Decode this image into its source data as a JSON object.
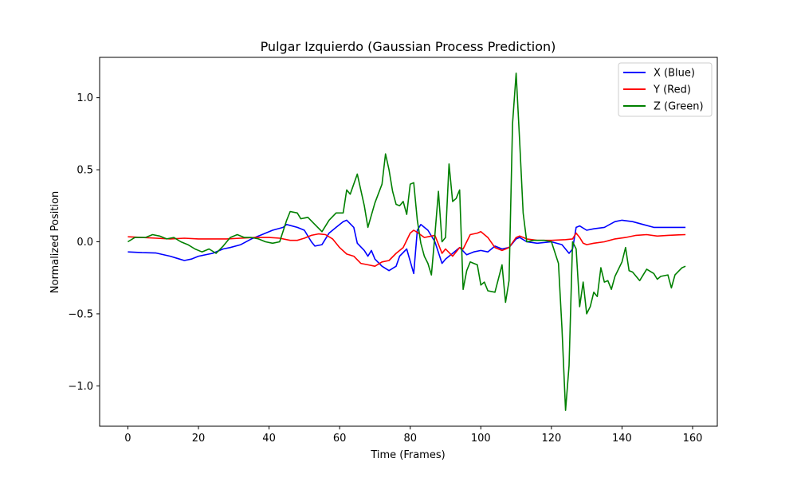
{
  "chart_data": {
    "type": "line",
    "title": "Pulgar Izquierdo (Gaussian Process Prediction)",
    "xlabel": "Time (Frames)",
    "ylabel": "Normalized Position",
    "xlim": [
      -8,
      167
    ],
    "ylim": [
      -1.28,
      1.28
    ],
    "x_ticks": [
      0,
      20,
      40,
      60,
      80,
      100,
      120,
      140,
      160
    ],
    "y_ticks": [
      -1.0,
      -0.5,
      0.0,
      0.5,
      1.0
    ],
    "y_tick_labels": [
      "−1.0",
      "−0.5",
      "0.0",
      "0.5",
      "1.0"
    ],
    "grid": false,
    "legend_position": "top-right",
    "series": [
      {
        "name": "X (Blue)",
        "color": "#0000ff",
        "points": [
          [
            0,
            -0.07
          ],
          [
            4,
            -0.075
          ],
          [
            8,
            -0.078
          ],
          [
            12,
            -0.1
          ],
          [
            14,
            -0.115
          ],
          [
            16,
            -0.13
          ],
          [
            18,
            -0.12
          ],
          [
            20,
            -0.1
          ],
          [
            24,
            -0.08
          ],
          [
            27,
            -0.05
          ],
          [
            29,
            -0.04
          ],
          [
            32,
            -0.02
          ],
          [
            35,
            0.02
          ],
          [
            38,
            0.05
          ],
          [
            41,
            0.08
          ],
          [
            44,
            0.1
          ],
          [
            45,
            0.12
          ],
          [
            48,
            0.1
          ],
          [
            50,
            0.08
          ],
          [
            52,
            0.0
          ],
          [
            53,
            -0.03
          ],
          [
            55,
            -0.02
          ],
          [
            57,
            0.06
          ],
          [
            59,
            0.1
          ],
          [
            61,
            0.14
          ],
          [
            62,
            0.15
          ],
          [
            64,
            0.1
          ],
          [
            65,
            -0.01
          ],
          [
            67,
            -0.06
          ],
          [
            68,
            -0.1
          ],
          [
            69,
            -0.06
          ],
          [
            70,
            -0.12
          ],
          [
            72,
            -0.17
          ],
          [
            74,
            -0.2
          ],
          [
            76,
            -0.17
          ],
          [
            77,
            -0.1
          ],
          [
            79,
            -0.05
          ],
          [
            81,
            -0.22
          ],
          [
            82,
            0.08
          ],
          [
            83,
            0.12
          ],
          [
            85,
            0.08
          ],
          [
            87,
            0.0
          ],
          [
            89,
            -0.15
          ],
          [
            90,
            -0.12
          ],
          [
            92,
            -0.08
          ],
          [
            94,
            -0.04
          ],
          [
            96,
            -0.09
          ],
          [
            98,
            -0.07
          ],
          [
            100,
            -0.06
          ],
          [
            102,
            -0.07
          ],
          [
            104,
            -0.03
          ],
          [
            106,
            -0.05
          ],
          [
            108,
            -0.04
          ],
          [
            110,
            0.02
          ],
          [
            111,
            0.03
          ],
          [
            113,
            0.0
          ],
          [
            116,
            -0.01
          ],
          [
            120,
            0.0
          ],
          [
            123,
            -0.02
          ],
          [
            125,
            -0.08
          ],
          [
            126,
            -0.05
          ],
          [
            127,
            0.1
          ],
          [
            128,
            0.11
          ],
          [
            130,
            0.08
          ],
          [
            132,
            0.09
          ],
          [
            135,
            0.1
          ],
          [
            138,
            0.14
          ],
          [
            140,
            0.15
          ],
          [
            143,
            0.14
          ],
          [
            146,
            0.12
          ],
          [
            149,
            0.1
          ],
          [
            152,
            0.1
          ],
          [
            155,
            0.1
          ],
          [
            158,
            0.1
          ]
        ]
      },
      {
        "name": "Y (Red)",
        "color": "#ff0000",
        "points": [
          [
            0,
            0.035
          ],
          [
            4,
            0.03
          ],
          [
            8,
            0.025
          ],
          [
            12,
            0.02
          ],
          [
            16,
            0.025
          ],
          [
            20,
            0.02
          ],
          [
            24,
            0.02
          ],
          [
            28,
            0.02
          ],
          [
            32,
            0.025
          ],
          [
            36,
            0.03
          ],
          [
            40,
            0.03
          ],
          [
            43,
            0.025
          ],
          [
            46,
            0.01
          ],
          [
            48,
            0.01
          ],
          [
            50,
            0.025
          ],
          [
            52,
            0.045
          ],
          [
            54,
            0.055
          ],
          [
            56,
            0.05
          ],
          [
            58,
            0.02
          ],
          [
            60,
            -0.04
          ],
          [
            62,
            -0.085
          ],
          [
            64,
            -0.1
          ],
          [
            66,
            -0.15
          ],
          [
            68,
            -0.16
          ],
          [
            70,
            -0.17
          ],
          [
            72,
            -0.14
          ],
          [
            74,
            -0.13
          ],
          [
            76,
            -0.08
          ],
          [
            78,
            -0.04
          ],
          [
            80,
            0.06
          ],
          [
            81,
            0.08
          ],
          [
            82,
            0.065
          ],
          [
            84,
            0.03
          ],
          [
            86,
            0.04
          ],
          [
            87,
            0.045
          ],
          [
            89,
            -0.08
          ],
          [
            90,
            -0.05
          ],
          [
            92,
            -0.1
          ],
          [
            94,
            -0.04
          ],
          [
            95,
            -0.05
          ],
          [
            97,
            0.05
          ],
          [
            99,
            0.06
          ],
          [
            100,
            0.07
          ],
          [
            102,
            0.03
          ],
          [
            104,
            -0.04
          ],
          [
            106,
            -0.06
          ],
          [
            108,
            -0.04
          ],
          [
            110,
            0.03
          ],
          [
            111,
            0.04
          ],
          [
            113,
            0.02
          ],
          [
            116,
            0.01
          ],
          [
            120,
            0.01
          ],
          [
            124,
            0.015
          ],
          [
            126,
            0.02
          ],
          [
            127,
            0.06
          ],
          [
            128,
            0.03
          ],
          [
            129,
            -0.01
          ],
          [
            130,
            -0.02
          ],
          [
            132,
            -0.01
          ],
          [
            135,
            0.0
          ],
          [
            138,
            0.02
          ],
          [
            141,
            0.03
          ],
          [
            144,
            0.045
          ],
          [
            147,
            0.05
          ],
          [
            150,
            0.04
          ],
          [
            153,
            0.045
          ],
          [
            156,
            0.048
          ],
          [
            158,
            0.05
          ]
        ]
      },
      {
        "name": "Z (Green)",
        "color": "#008000",
        "points": [
          [
            0,
            0.0
          ],
          [
            2,
            0.03
          ],
          [
            5,
            0.03
          ],
          [
            7,
            0.05
          ],
          [
            9,
            0.04
          ],
          [
            11,
            0.02
          ],
          [
            13,
            0.03
          ],
          [
            15,
            0.0
          ],
          [
            17,
            -0.02
          ],
          [
            19,
            -0.05
          ],
          [
            21,
            -0.07
          ],
          [
            23,
            -0.05
          ],
          [
            25,
            -0.08
          ],
          [
            27,
            -0.03
          ],
          [
            29,
            0.03
          ],
          [
            31,
            0.05
          ],
          [
            33,
            0.03
          ],
          [
            35,
            0.03
          ],
          [
            37,
            0.02
          ],
          [
            39,
            0.0
          ],
          [
            41,
            -0.01
          ],
          [
            43,
            0.0
          ],
          [
            45,
            0.15
          ],
          [
            46,
            0.21
          ],
          [
            48,
            0.2
          ],
          [
            49,
            0.16
          ],
          [
            51,
            0.17
          ],
          [
            53,
            0.12
          ],
          [
            55,
            0.07
          ],
          [
            57,
            0.15
          ],
          [
            59,
            0.2
          ],
          [
            61,
            0.2
          ],
          [
            62,
            0.36
          ],
          [
            63,
            0.33
          ],
          [
            65,
            0.47
          ],
          [
            67,
            0.25
          ],
          [
            68,
            0.1
          ],
          [
            70,
            0.27
          ],
          [
            72,
            0.4
          ],
          [
            73,
            0.61
          ],
          [
            74,
            0.5
          ],
          [
            75,
            0.35
          ],
          [
            76,
            0.26
          ],
          [
            77,
            0.25
          ],
          [
            78,
            0.28
          ],
          [
            79,
            0.19
          ],
          [
            80,
            0.4
          ],
          [
            81,
            0.41
          ],
          [
            82,
            0.15
          ],
          [
            83,
            -0.01
          ],
          [
            84,
            -0.1
          ],
          [
            85,
            -0.15
          ],
          [
            86,
            -0.23
          ],
          [
            87,
            0.05
          ],
          [
            88,
            0.35
          ],
          [
            89,
            0.0
          ],
          [
            90,
            0.03
          ],
          [
            91,
            0.54
          ],
          [
            92,
            0.28
          ],
          [
            93,
            0.3
          ],
          [
            94,
            0.36
          ],
          [
            95,
            -0.33
          ],
          [
            96,
            -0.2
          ],
          [
            97,
            -0.14
          ],
          [
            98,
            -0.15
          ],
          [
            99,
            -0.16
          ],
          [
            100,
            -0.3
          ],
          [
            101,
            -0.28
          ],
          [
            102,
            -0.34
          ],
          [
            104,
            -0.35
          ],
          [
            106,
            -0.16
          ],
          [
            107,
            -0.42
          ],
          [
            108,
            -0.27
          ],
          [
            109,
            0.82
          ],
          [
            110,
            1.17
          ],
          [
            111,
            0.7
          ],
          [
            112,
            0.2
          ],
          [
            113,
            0.0
          ],
          [
            115,
            0.01
          ],
          [
            118,
            0.01
          ],
          [
            120,
            0.0
          ],
          [
            122,
            -0.15
          ],
          [
            123,
            -0.6
          ],
          [
            124,
            -1.17
          ],
          [
            125,
            -0.86
          ],
          [
            126,
            0.0
          ],
          [
            127,
            -0.05
          ],
          [
            128,
            -0.45
          ],
          [
            129,
            -0.28
          ],
          [
            130,
            -0.5
          ],
          [
            131,
            -0.45
          ],
          [
            132,
            -0.35
          ],
          [
            133,
            -0.38
          ],
          [
            134,
            -0.18
          ],
          [
            135,
            -0.28
          ],
          [
            136,
            -0.27
          ],
          [
            137,
            -0.33
          ],
          [
            138,
            -0.24
          ],
          [
            139,
            -0.19
          ],
          [
            140,
            -0.14
          ],
          [
            141,
            -0.04
          ],
          [
            142,
            -0.2
          ],
          [
            143,
            -0.21
          ],
          [
            145,
            -0.27
          ],
          [
            147,
            -0.19
          ],
          [
            149,
            -0.22
          ],
          [
            150,
            -0.26
          ],
          [
            151,
            -0.24
          ],
          [
            153,
            -0.23
          ],
          [
            154,
            -0.32
          ],
          [
            155,
            -0.23
          ],
          [
            157,
            -0.18
          ],
          [
            158,
            -0.17
          ]
        ]
      }
    ]
  }
}
